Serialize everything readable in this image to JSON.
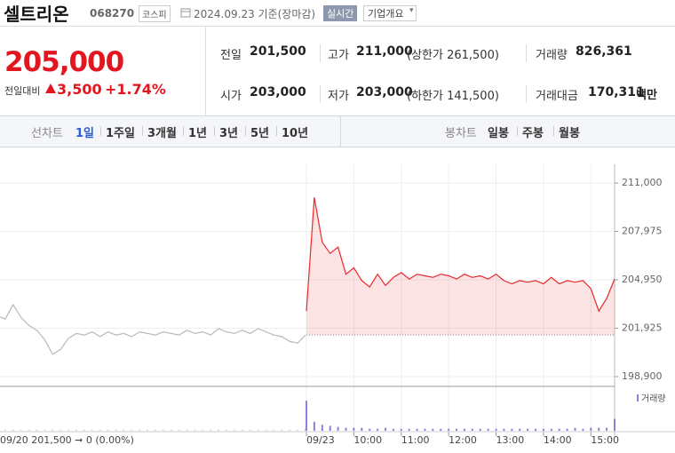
{
  "header": {
    "name": "셀트리온",
    "code": "068270",
    "market": "코스피",
    "date": "2024.09.23 기준(장마감)",
    "realtime": "실시간",
    "company_info": "기업개요"
  },
  "price": {
    "current": "205,000",
    "change_label": "전일대비",
    "change": "3,500",
    "change_rate": "+1.74%"
  },
  "stats": [
    {
      "label": "전일",
      "value": "201,500"
    },
    {
      "label": "고가",
      "value": "211,000",
      "note": "(상한가 261,500)"
    },
    {
      "label": "거래량",
      "value": "826,361"
    },
    {
      "label": "시가",
      "value": "203,000"
    },
    {
      "label": "저가",
      "value": "203,000",
      "note": "(하한가 141,500)"
    },
    {
      "label": "거래대금",
      "value": "170,311",
      "unit": "백만"
    }
  ],
  "tabs": {
    "line_label": "선차트",
    "periods": [
      "1일",
      "1주일",
      "3개월",
      "1년",
      "3년",
      "5년",
      "10년"
    ],
    "selected": 0,
    "candle_label": "봉차트",
    "candles": [
      "일봉",
      "주봉",
      "월봉"
    ]
  },
  "chart_data": {
    "type": "line",
    "categories": [
      null,
      null,
      null,
      null,
      null,
      null,
      null,
      null,
      null,
      null,
      null,
      null,
      null,
      null,
      null,
      null,
      null,
      null,
      null,
      null,
      null,
      null,
      null,
      null,
      null,
      null,
      null,
      null,
      null,
      null,
      null,
      null,
      null,
      null,
      null,
      null,
      null,
      null,
      null,
      null,
      "09/23",
      null,
      null,
      null,
      null,
      null,
      "10:00",
      null,
      null,
      null,
      null,
      null,
      "11:00",
      null,
      null,
      null,
      null,
      null,
      "12:00",
      null,
      null,
      null,
      null,
      null,
      "13:00",
      null,
      null,
      null,
      null,
      null,
      "14:00",
      null,
      null,
      null,
      null,
      null,
      "15:00",
      null,
      null,
      null
    ],
    "series": [
      {
        "color": "#b9b9b9",
        "values": [
          202700,
          202500,
          203400,
          202600,
          202100,
          201800,
          201200,
          200300,
          200600,
          201300,
          201600,
          201500,
          201700,
          201400,
          201700,
          201500,
          201600,
          201400,
          201700,
          201600,
          201500,
          201700,
          201600,
          201500,
          201800,
          201600,
          201700,
          201500,
          201900,
          201700,
          201600,
          201800,
          201600,
          201900,
          201700,
          201500,
          201400,
          201100,
          201000,
          201500,
          null,
          null,
          null,
          null,
          null,
          null,
          null,
          null,
          null,
          null,
          null,
          null,
          null,
          null,
          null,
          null,
          null,
          null,
          null,
          null,
          null,
          null,
          null,
          null,
          null,
          null,
          null,
          null,
          null,
          null,
          null,
          null,
          null,
          null,
          null,
          null,
          null,
          null,
          null,
          null
        ]
      },
      {
        "color": "#e8282b",
        "values": [
          null,
          null,
          null,
          null,
          null,
          null,
          null,
          null,
          null,
          null,
          null,
          null,
          null,
          null,
          null,
          null,
          null,
          null,
          null,
          null,
          null,
          null,
          null,
          null,
          null,
          null,
          null,
          null,
          null,
          null,
          null,
          null,
          null,
          null,
          null,
          null,
          null,
          null,
          null,
          null,
          203000,
          210100,
          207300,
          206600,
          207000,
          205300,
          205700,
          204900,
          204500,
          205300,
          204600,
          205100,
          205400,
          205000,
          205300,
          205200,
          205100,
          205300,
          205200,
          205000,
          205300,
          205100,
          205200,
          205000,
          205300,
          204900,
          204700,
          204900,
          204800,
          204900,
          204700,
          205100,
          204700,
          204900,
          204800,
          204900,
          204400,
          203000,
          203800,
          205000
        ]
      }
    ],
    "baseline": 201500,
    "ylim": [
      198290,
      212170
    ],
    "yticks": [
      {
        "value": 198900,
        "label": "198,900"
      },
      {
        "value": 201925,
        "label": "201,925"
      },
      {
        "value": 204950,
        "label": "204,950"
      },
      {
        "value": 207975,
        "label": "207,975"
      },
      {
        "value": 211000,
        "label": "211,000"
      }
    ],
    "grid": true,
    "volume": {
      "label": "거래량",
      "lim": [
        0,
        40
      ],
      "values": [
        1,
        1,
        1,
        1,
        1,
        1,
        1,
        1,
        1,
        1,
        1,
        1,
        1,
        1,
        1,
        1,
        1,
        1,
        1,
        1,
        1,
        1,
        1,
        1,
        1,
        1,
        1,
        1,
        1,
        1,
        1,
        1,
        1,
        1,
        1,
        1,
        1,
        1,
        1,
        2,
        30,
        9,
        6,
        5,
        4,
        3,
        3,
        3,
        2,
        2,
        3,
        2,
        2,
        2,
        2,
        2,
        2,
        2,
        2,
        2,
        2,
        2,
        2,
        2,
        2,
        2,
        2,
        2,
        2,
        2,
        2,
        2,
        2,
        2,
        3,
        2,
        3,
        3,
        3,
        12
      ]
    },
    "annotation": "09/20  201,500 ➞ 0 (0.00%)"
  }
}
